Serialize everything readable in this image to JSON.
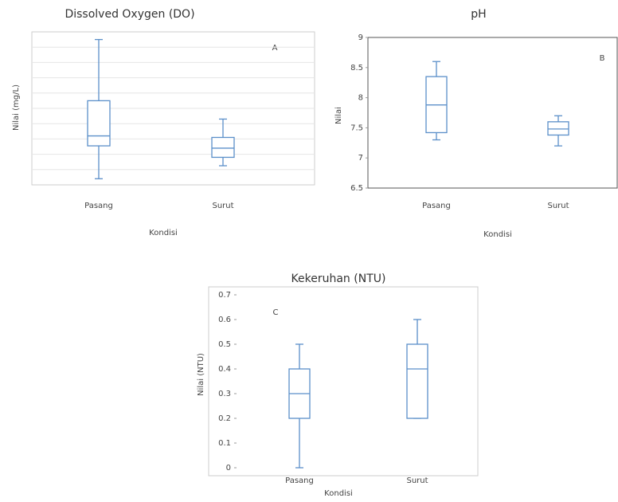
{
  "chart_data": [
    {
      "type": "box",
      "title": "Dissolved Oxygen (DO)",
      "annotation": "A",
      "x_label": "Kondisi",
      "y_label": "Nilai (mg/L)",
      "categories": [
        "Pasang",
        "Surut"
      ],
      "boxes": [
        {
          "min": 0.4,
          "q1": 2.55,
          "median": 3.2,
          "q3": 5.5,
          "max": 9.5
        },
        {
          "min": 1.25,
          "q1": 1.8,
          "median": 2.4,
          "q3": 3.1,
          "max": 4.3
        }
      ],
      "ylim": [
        0,
        10
      ],
      "gridlines": [
        1,
        2,
        3,
        4,
        5,
        6,
        7,
        8,
        9
      ],
      "grid": true,
      "color": "#5b8fc9"
    },
    {
      "type": "box",
      "title": "pH",
      "annotation": "B",
      "x_label": "Kondisi",
      "y_label": "Nilai",
      "categories": [
        "Pasang",
        "Surut"
      ],
      "boxes": [
        {
          "min": 7.3,
          "q1": 7.42,
          "median": 7.88,
          "q3": 8.35,
          "max": 8.6
        },
        {
          "min": 7.2,
          "q1": 7.38,
          "median": 7.48,
          "q3": 7.6,
          "max": 7.7
        }
      ],
      "ylim": [
        6.5,
        9
      ],
      "yticks": [
        6.5,
        7,
        7.5,
        8,
        8.5,
        9
      ],
      "grid": false,
      "color": "#5b8fc9"
    },
    {
      "type": "box",
      "title": "Kekeruhan (NTU)",
      "annotation": "C",
      "x_label": "Kondisi",
      "y_label": "Nilai (NTU)",
      "categories": [
        "Pasang",
        "Surut"
      ],
      "boxes": [
        {
          "min": 0,
          "q1": 0.2,
          "median": 0.3,
          "q3": 0.4,
          "max": 0.5
        },
        {
          "min": 0.2,
          "q1": 0.2,
          "median": 0.4,
          "q3": 0.5,
          "max": 0.6
        }
      ],
      "ylim": [
        0,
        0.7
      ],
      "yticks": [
        0,
        0.1,
        0.2,
        0.3,
        0.4,
        0.5,
        0.6,
        0.7
      ],
      "grid": false,
      "color": "#5b8fc9"
    }
  ]
}
